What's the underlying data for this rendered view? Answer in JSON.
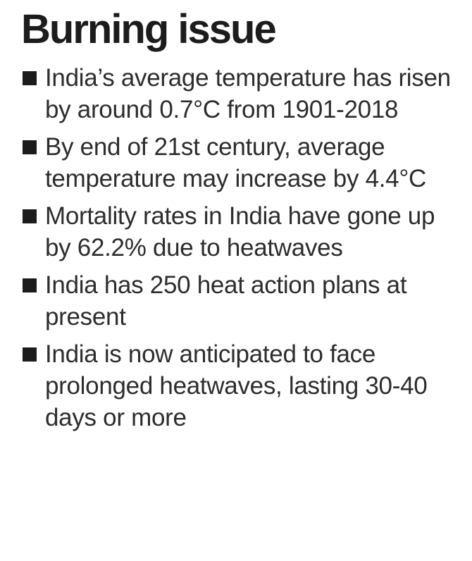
{
  "title": "Burning issue",
  "bullets": [
    {
      "text": "India’s average temperature has risen by around 0.7°C from 1901-2018"
    },
    {
      "text": "By end of 21st century, average temperature may increase by 4.4°C"
    },
    {
      "text": "Mortality rates in India have gone up by 62.2% due to heatwaves"
    },
    {
      "text": "India has 250 heat action plans at present"
    },
    {
      "text": "India is now anticipated to face prolonged heatwaves, lasting 30-40 days or more"
    }
  ],
  "colors": {
    "text": "#2d2d2d",
    "title": "#1c1c1c",
    "bullet": "#1c1c1c",
    "background": "#ffffff"
  },
  "icons": {
    "bullet": "square-bullet-icon"
  }
}
